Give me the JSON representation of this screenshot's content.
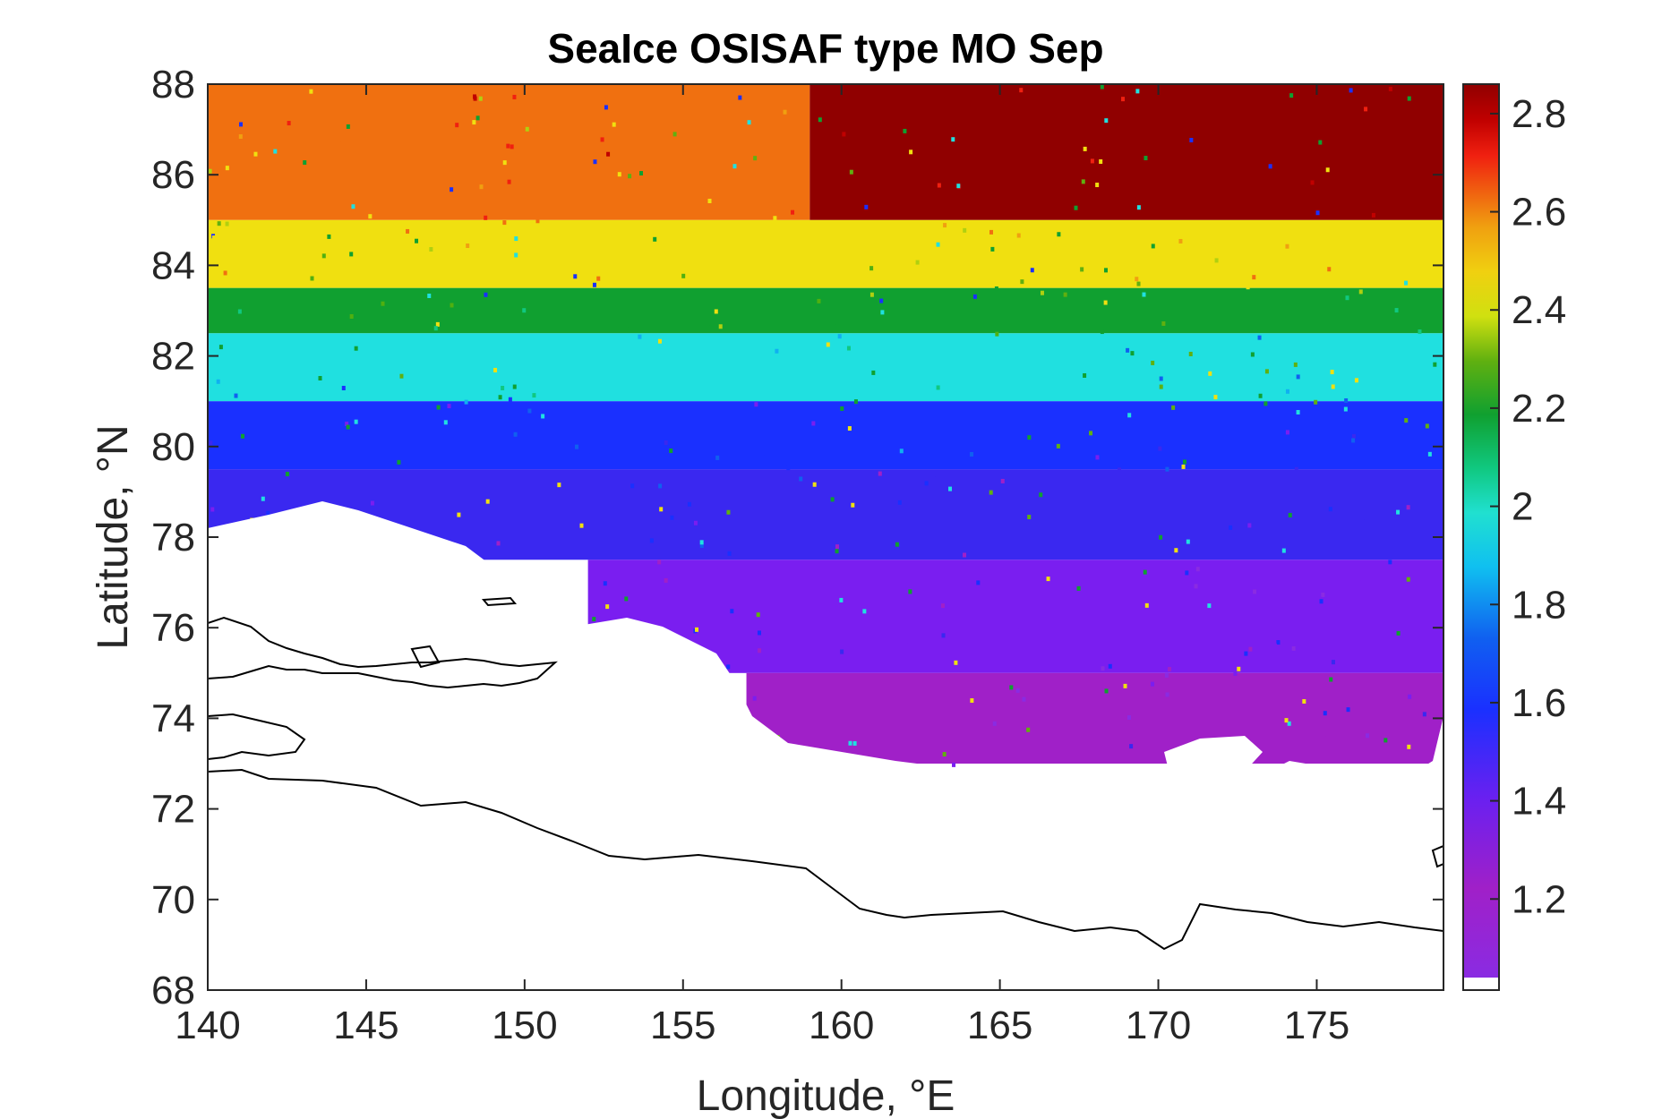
{
  "chart_data": {
    "type": "heatmap",
    "title": "SeaIce OSISAF type MO Sep",
    "xlabel": "Longitude, °E",
    "ylabel": "Latitude, °N",
    "xlim": [
      140,
      179
    ],
    "ylim": [
      68,
      88
    ],
    "xticks": [
      "140",
      "145",
      "150",
      "155",
      "160",
      "165",
      "170",
      "175"
    ],
    "yticks": [
      "68",
      "70",
      "72",
      "74",
      "76",
      "78",
      "80",
      "82",
      "84",
      "86",
      "88"
    ],
    "colorbar": {
      "range": [
        1.04,
        2.86
      ],
      "ticks": [
        "1.2",
        "1.4",
        "1.6",
        "1.8",
        "2",
        "2.2",
        "2.4",
        "2.6",
        "2.8"
      ],
      "colormap": "jet-like (purple-blue-cyan-green-yellow-orange-red-darkred)"
    },
    "bands": [
      {
        "lat": [
          85.0,
          88.0
        ],
        "lon": [
          140,
          159
        ],
        "value": 2.45
      },
      {
        "lat": [
          85.0,
          88.0
        ],
        "lon": [
          159,
          179
        ],
        "value": 2.8
      },
      {
        "lat": [
          83.5,
          85.0
        ],
        "lon": [
          140,
          179
        ],
        "value": 2.3
      },
      {
        "lat": [
          82.5,
          83.5
        ],
        "lon": [
          140,
          179
        ],
        "value": 2.05
      },
      {
        "lat": [
          81.0,
          82.5
        ],
        "lon": [
          140,
          179
        ],
        "value": 1.8
      },
      {
        "lat": [
          79.5,
          81.0
        ],
        "lon": [
          140,
          179
        ],
        "value": 1.55
      },
      {
        "lat": [
          77.5,
          79.5
        ],
        "lon": [
          140,
          179
        ],
        "value": 1.35
      },
      {
        "lat": [
          75.0,
          77.5
        ],
        "lon": [
          152,
          179
        ],
        "value": 1.3
      },
      {
        "lat": [
          73.0,
          75.0
        ],
        "lon": [
          157,
          179
        ],
        "value": 1.2
      }
    ],
    "colors": {
      "c1.1": "#8a2be2",
      "c1.2": "#a020c8",
      "c1.3": "#7a1ef0",
      "c1.4": "#3a28f0",
      "c1.5": "#1a30ff",
      "c1.6": "#1060f0",
      "c1.7": "#10b0f0",
      "c1.8": "#20e0e0",
      "c1.9": "#10c880",
      "c2.0": "#10a030",
      "c2.1": "#50b010",
      "c2.2": "#b0d010",
      "c2.3": "#f0e010",
      "c2.4": "#f0a010",
      "c2.5": "#f07010",
      "c2.6": "#f02010",
      "c2.7": "#c00000",
      "c2.8": "#900000"
    }
  }
}
